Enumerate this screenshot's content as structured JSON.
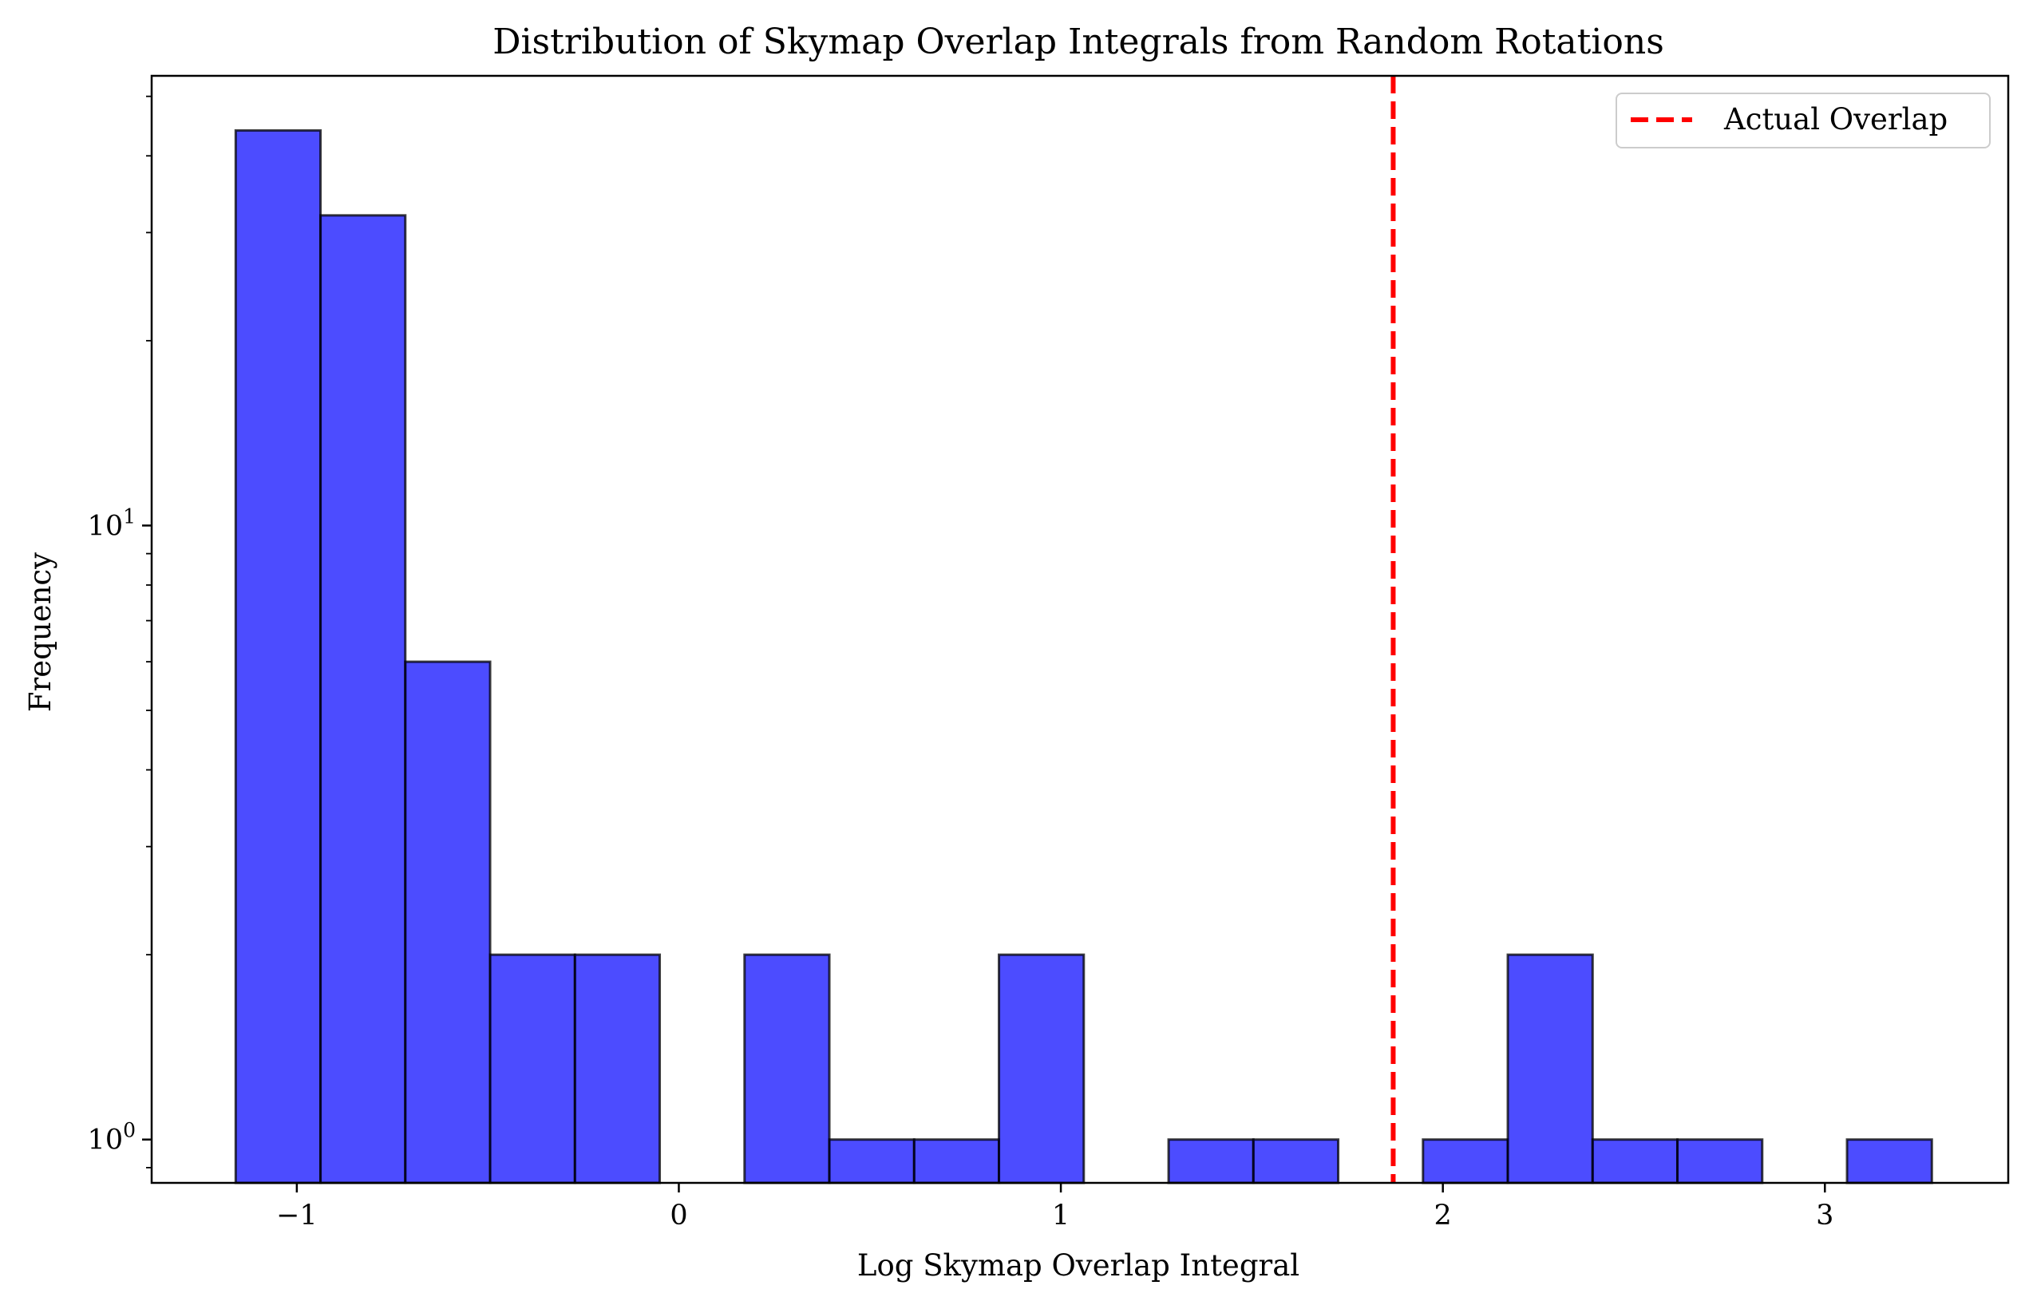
{
  "chart_data": {
    "type": "bar",
    "subtype": "histogram",
    "title": "Distribution of Skymap Overlap Integrals from Random Rotations",
    "xlabel": "Log Skymap Overlap Integral",
    "ylabel": "Frequency",
    "y_scale": "log",
    "xlim": [
      -1.38,
      3.48
    ],
    "ylim": [
      0.85,
      54
    ],
    "x_ticks": [
      {
        "value": -1,
        "label": "−1"
      },
      {
        "value": 0,
        "label": "0"
      },
      {
        "value": 1,
        "label": "1"
      },
      {
        "value": 2,
        "label": "2"
      },
      {
        "value": 3,
        "label": "3"
      }
    ],
    "y_ticks": [
      {
        "value": 1,
        "base": "10",
        "exp": "0"
      },
      {
        "value": 10,
        "base": "10",
        "exp": "1"
      }
    ],
    "bin_edges": [
      -1.16,
      -0.938,
      -0.716,
      -0.494,
      -0.272,
      -0.05,
      0.172,
      0.394,
      0.616,
      0.838,
      1.06,
      1.282,
      1.504,
      1.726,
      1.948,
      2.17,
      2.392,
      2.614,
      2.836,
      3.058,
      3.28
    ],
    "counts": [
      44,
      32,
      6,
      2,
      2,
      0,
      2,
      1,
      1,
      2,
      0,
      1,
      1,
      0,
      1,
      2,
      1,
      1,
      0,
      1
    ],
    "bar_color": "#0000ff",
    "bar_alpha": 0.7,
    "edge_color": "#000000",
    "vline": {
      "x": 1.87,
      "color": "#ff0000",
      "style": "dashed",
      "label": "Actual Overlap"
    },
    "legend": {
      "position": "top-right",
      "entries": [
        "Actual Overlap"
      ]
    },
    "grid": false
  }
}
